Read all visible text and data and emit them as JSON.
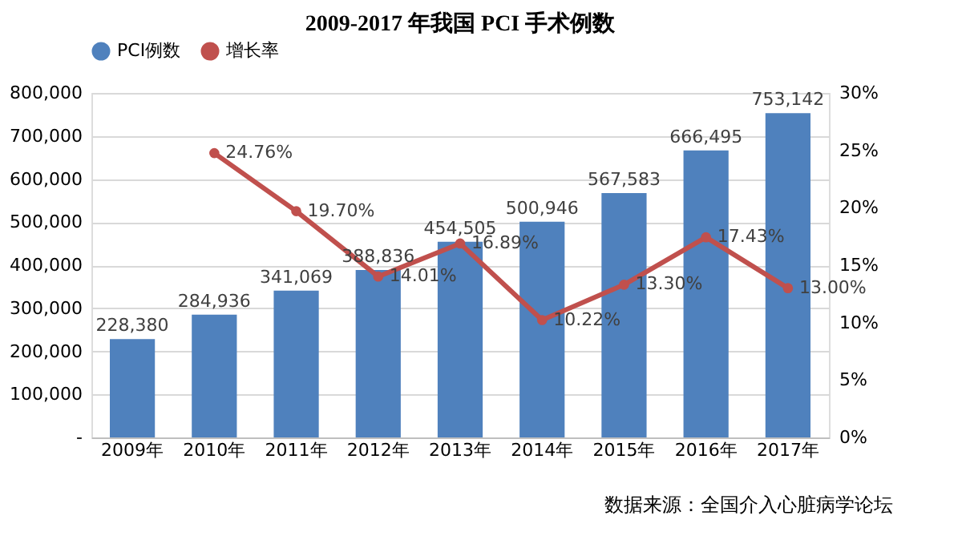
{
  "chart_data": {
    "type": "bar",
    "title": "2009-2017 年我国 PCI 手术例数",
    "categories": [
      "2009年",
      "2010年",
      "2011年",
      "2012年",
      "2013年",
      "2014年",
      "2015年",
      "2016年",
      "2017年"
    ],
    "series": [
      {
        "name": "PCI例数",
        "color": "#4f81bd",
        "values": [
          228380,
          284936,
          341069,
          388836,
          454505,
          500946,
          567583,
          666495,
          753142
        ],
        "value_labels": [
          "228,380",
          "284,936",
          "341,069",
          "388,836",
          "454,505",
          "500,946",
          "567,583",
          "666,495",
          "753,142"
        ]
      },
      {
        "name": "增长率",
        "type": "line",
        "axis": "y2",
        "color": "#c0504d",
        "marker": "circle",
        "line_style": "solid",
        "values": [
          null,
          24.76,
          19.7,
          14.01,
          16.89,
          10.22,
          13.3,
          17.43,
          13.0
        ],
        "value_labels": [
          null,
          "24.76%",
          "19.70%",
          "14.01%",
          "16.89%",
          "10.22%",
          "13.30%",
          "17.43%",
          "13.00%"
        ]
      }
    ],
    "ylim": [
      0,
      800000
    ],
    "yticks": [
      {
        "value": 0,
        "label": "-"
      },
      {
        "value": 100000,
        "label": "100,000"
      },
      {
        "value": 200000,
        "label": "200,000"
      },
      {
        "value": 300000,
        "label": "300,000"
      },
      {
        "value": 400000,
        "label": "400,000"
      },
      {
        "value": 500000,
        "label": "500,000"
      },
      {
        "value": 600000,
        "label": "600,000"
      },
      {
        "value": 700000,
        "label": "700,000"
      },
      {
        "value": 800000,
        "label": "800,000"
      }
    ],
    "y2lim": [
      0,
      30
    ],
    "y2ticks": [
      {
        "value": 0,
        "label": "0%"
      },
      {
        "value": 5,
        "label": "5%"
      },
      {
        "value": 10,
        "label": "10%"
      },
      {
        "value": 15,
        "label": "15%"
      },
      {
        "value": 20,
        "label": "20%"
      },
      {
        "value": 25,
        "label": "25%"
      },
      {
        "value": 30,
        "label": "30%"
      }
    ],
    "grid": "y",
    "legend": "top",
    "annotations": [
      "数据来源：全国介入心脏病学论坛"
    ]
  }
}
